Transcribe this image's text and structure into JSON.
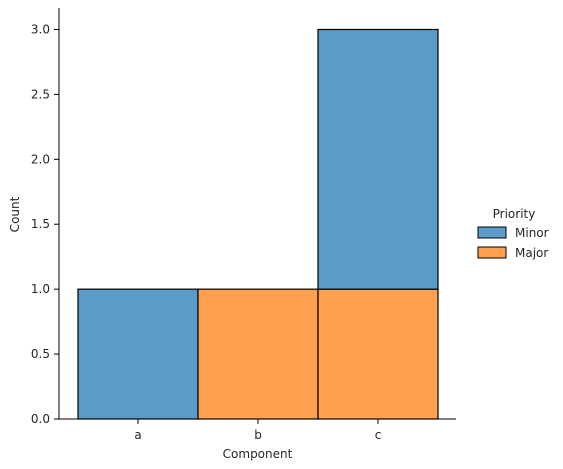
{
  "chart_data": {
    "type": "bar",
    "stacked": true,
    "categories": [
      "a",
      "b",
      "c"
    ],
    "series": [
      {
        "name": "Minor",
        "color": "#5b9bc9",
        "values": [
          1,
          0,
          2
        ]
      },
      {
        "name": "Major",
        "color": "#ffa14e",
        "values": [
          0,
          1,
          1
        ]
      }
    ],
    "stack_order": [
      "Major",
      "Minor"
    ],
    "xlabel": "Component",
    "ylabel": "Count",
    "ylim": [
      0,
      3.15
    ],
    "yticks": [
      0.0,
      0.5,
      1.0,
      1.5,
      2.0,
      2.5,
      3.0
    ],
    "ytick_labels": [
      "0.0",
      "0.5",
      "1.0",
      "1.5",
      "2.0",
      "2.5",
      "3.0"
    ],
    "grid": false,
    "legend": {
      "title": "Priority",
      "placement": "right"
    }
  }
}
